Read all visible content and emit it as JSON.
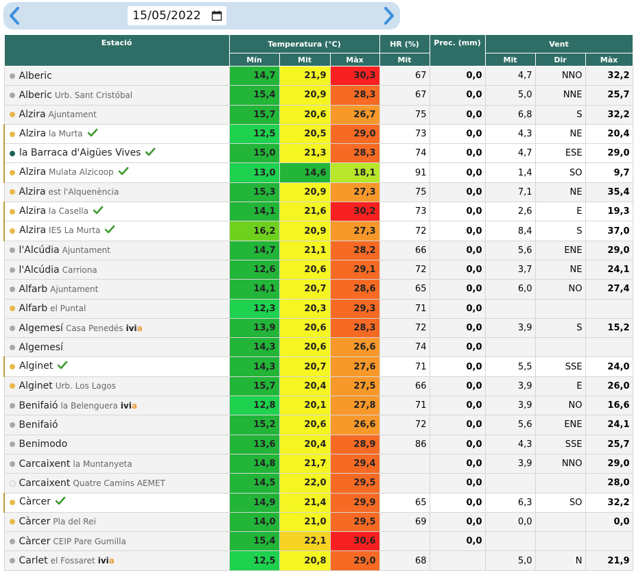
{
  "date_picker": {
    "value": "15/05/2022"
  },
  "header": {
    "station": "Estació",
    "temperature": "Temperatura (°C)",
    "humidity": "HR (%)",
    "precipitation": "Prec. (mm)",
    "wind": "Vent",
    "temp_min": "Mín",
    "temp_mit": "Mit",
    "temp_max": "Màx",
    "hr_mit": "Mit",
    "wind_mit": "Mit",
    "wind_dir": "Dir",
    "wind_max": "Màx"
  },
  "colors": {
    "header_bg": "#2f6e66",
    "date_bar_bg": "#cfe0ef",
    "arrow": "#3d8fe0",
    "check": "#3a9a2a"
  },
  "rows": [
    {
      "name": "Alberic",
      "sub": "",
      "dot": "gray",
      "check": false,
      "ivia": false,
      "flag": false,
      "min": "14,7",
      "min_c": "#22b538",
      "mit": "21,9",
      "mit_c": "#f5f522",
      "max": "30,3",
      "max_c": "#f82020",
      "hr": "67",
      "prec": "0,0",
      "wmit": "4,7",
      "wdir": "NNO",
      "wmax": "32,2"
    },
    {
      "name": "Alberic",
      "sub": "Urb. Sant Cristóbal",
      "dot": "gray",
      "check": false,
      "ivia": false,
      "flag": false,
      "min": "15,4",
      "min_c": "#22b538",
      "mit": "20,9",
      "mit_c": "#f5f522",
      "max": "28,3",
      "max_c": "#f66a24",
      "hr": "67",
      "prec": "0,0",
      "wmit": "5,0",
      "wdir": "NNE",
      "wmax": "25,7"
    },
    {
      "name": "Alzira",
      "sub": "Ajuntament",
      "dot": "yellow",
      "check": false,
      "ivia": false,
      "flag": false,
      "min": "15,7",
      "min_c": "#22b538",
      "mit": "20,6",
      "mit_c": "#f5f522",
      "max": "26,7",
      "max_c": "#f7982a",
      "hr": "75",
      "prec": "0,0",
      "wmit": "6,8",
      "wdir": "S",
      "wmax": "32,2"
    },
    {
      "name": "Alzira",
      "sub": "la Murta",
      "dot": "yellow",
      "check": true,
      "ivia": false,
      "flag": true,
      "min": "12,5",
      "min_c": "#1ed14e",
      "mit": "20,5",
      "mit_c": "#f5f522",
      "max": "29,0",
      "max_c": "#f66a24",
      "hr": "73",
      "prec": "0,0",
      "wmit": "4,3",
      "wdir": "NE",
      "wmax": "20,4"
    },
    {
      "name": "la Barraca d'Aigües Vives",
      "sub": "",
      "dot": "teal",
      "check": true,
      "ivia": false,
      "flag": true,
      "min": "15,0",
      "min_c": "#22b538",
      "mit": "21,3",
      "mit_c": "#f5f522",
      "max": "28,3",
      "max_c": "#f66a24",
      "hr": "74",
      "prec": "0,0",
      "wmit": "4,7",
      "wdir": "ESE",
      "wmax": "29,0"
    },
    {
      "name": "Alzira",
      "sub": "Mulata Alzicoop",
      "dot": "yellow",
      "check": true,
      "ivia": false,
      "flag": true,
      "min": "13,0",
      "min_c": "#1ed14e",
      "mit": "14,6",
      "mit_c": "#22b538",
      "max": "18,1",
      "max_c": "#b8e62a",
      "hr": "91",
      "prec": "0,0",
      "wmit": "1,4",
      "wdir": "SO",
      "wmax": "9,7"
    },
    {
      "name": "Alzira",
      "sub": "est l'Alquenència",
      "dot": "yellow",
      "check": false,
      "ivia": false,
      "flag": false,
      "min": "15,3",
      "min_c": "#22b538",
      "mit": "20,9",
      "mit_c": "#f5f522",
      "max": "27,3",
      "max_c": "#f7982a",
      "hr": "75",
      "prec": "0,0",
      "wmit": "7,1",
      "wdir": "NE",
      "wmax": "35,4"
    },
    {
      "name": "Alzira",
      "sub": "la Casella",
      "dot": "yellow",
      "check": true,
      "ivia": false,
      "flag": true,
      "min": "14,1",
      "min_c": "#22b538",
      "mit": "21,6",
      "mit_c": "#f5f522",
      "max": "30,2",
      "max_c": "#f82020",
      "hr": "73",
      "prec": "0,0",
      "wmit": "2,6",
      "wdir": "E",
      "wmax": "19,3"
    },
    {
      "name": "Alzira",
      "sub": "IES La Murta",
      "dot": "yellow",
      "check": true,
      "ivia": false,
      "flag": true,
      "min": "16,2",
      "min_c": "#6fd11e",
      "mit": "20,9",
      "mit_c": "#f5f522",
      "max": "27,3",
      "max_c": "#f7982a",
      "hr": "72",
      "prec": "0,0",
      "wmit": "8,4",
      "wdir": "S",
      "wmax": "37,0"
    },
    {
      "name": "l'Alcúdia",
      "sub": "Ajuntament",
      "dot": "gray",
      "check": false,
      "ivia": false,
      "flag": false,
      "min": "14,7",
      "min_c": "#22b538",
      "mit": "21,1",
      "mit_c": "#f5f522",
      "max": "28,2",
      "max_c": "#f66a24",
      "hr": "66",
      "prec": "0,0",
      "wmit": "5,6",
      "wdir": "ENE",
      "wmax": "29,0"
    },
    {
      "name": "l'Alcúdia",
      "sub": "Carriona",
      "dot": "gray",
      "check": false,
      "ivia": false,
      "flag": false,
      "min": "12,6",
      "min_c": "#22b538",
      "mit": "20,6",
      "mit_c": "#f5f522",
      "max": "29,1",
      "max_c": "#f66a24",
      "hr": "72",
      "prec": "0,0",
      "wmit": "3,7",
      "wdir": "NE",
      "wmax": "24,1"
    },
    {
      "name": "Alfarb",
      "sub": "Ajuntament",
      "dot": "gray",
      "check": false,
      "ivia": false,
      "flag": false,
      "min": "14,1",
      "min_c": "#22b538",
      "mit": "20,7",
      "mit_c": "#f5f522",
      "max": "28,6",
      "max_c": "#f66a24",
      "hr": "65",
      "prec": "0,0",
      "wmit": "6,0",
      "wdir": "NO",
      "wmax": "27,4"
    },
    {
      "name": "Alfarb",
      "sub": "el Puntal",
      "dot": "yellow",
      "check": false,
      "ivia": false,
      "flag": false,
      "min": "12,3",
      "min_c": "#1ed14e",
      "mit": "20,3",
      "mit_c": "#f5f522",
      "max": "29,3",
      "max_c": "#f66a24",
      "hr": "71",
      "prec": "0,0",
      "wmit": "",
      "wdir": "",
      "wmax": ""
    },
    {
      "name": "Algemesí",
      "sub": "Casa Penedés",
      "dot": "gray",
      "check": false,
      "ivia": true,
      "flag": false,
      "min": "13,9",
      "min_c": "#22b538",
      "mit": "20,6",
      "mit_c": "#f5f522",
      "max": "28,3",
      "max_c": "#f66a24",
      "hr": "72",
      "prec": "0,0",
      "wmit": "3,9",
      "wdir": "S",
      "wmax": "15,2"
    },
    {
      "name": "Algemesí",
      "sub": "",
      "dot": "gray",
      "check": false,
      "ivia": false,
      "flag": false,
      "min": "14,3",
      "min_c": "#22b538",
      "mit": "20,6",
      "mit_c": "#f5f522",
      "max": "26,6",
      "max_c": "#f7982a",
      "hr": "74",
      "prec": "0,0",
      "wmit": "",
      "wdir": "",
      "wmax": ""
    },
    {
      "name": "Alginet",
      "sub": "",
      "dot": "yellow",
      "check": true,
      "ivia": false,
      "flag": true,
      "min": "14,3",
      "min_c": "#22b538",
      "mit": "20,7",
      "mit_c": "#f5f522",
      "max": "27,6",
      "max_c": "#f7982a",
      "hr": "71",
      "prec": "0,0",
      "wmit": "5,5",
      "wdir": "SSE",
      "wmax": "24,0"
    },
    {
      "name": "Alginet",
      "sub": "Urb. Los Lagos",
      "dot": "yellow",
      "check": false,
      "ivia": false,
      "flag": false,
      "min": "15,7",
      "min_c": "#22b538",
      "mit": "20,4",
      "mit_c": "#f5f522",
      "max": "27,5",
      "max_c": "#f7982a",
      "hr": "66",
      "prec": "0,0",
      "wmit": "3,9",
      "wdir": "E",
      "wmax": "26,0"
    },
    {
      "name": "Benifaió",
      "sub": "la Belenguera",
      "dot": "gray",
      "check": false,
      "ivia": true,
      "flag": false,
      "min": "12,8",
      "min_c": "#1ed14e",
      "mit": "20,1",
      "mit_c": "#f5f522",
      "max": "27,8",
      "max_c": "#f7982a",
      "hr": "71",
      "prec": "0,0",
      "wmit": "3,9",
      "wdir": "NO",
      "wmax": "16,6"
    },
    {
      "name": "Benifaió",
      "sub": "",
      "dot": "gray",
      "check": false,
      "ivia": false,
      "flag": false,
      "min": "15,2",
      "min_c": "#22b538",
      "mit": "20,6",
      "mit_c": "#f5f522",
      "max": "26,6",
      "max_c": "#f7982a",
      "hr": "72",
      "prec": "0,0",
      "wmit": "5,6",
      "wdir": "ENE",
      "wmax": "24,1"
    },
    {
      "name": "Benimodo",
      "sub": "",
      "dot": "gray",
      "check": false,
      "ivia": false,
      "flag": false,
      "min": "13,6",
      "min_c": "#22b538",
      "mit": "20,4",
      "mit_c": "#f5f522",
      "max": "28,9",
      "max_c": "#f66a24",
      "hr": "86",
      "prec": "0,0",
      "wmit": "4,3",
      "wdir": "SSE",
      "wmax": "25,7"
    },
    {
      "name": "Carcaixent",
      "sub": "la Muntanyeta",
      "dot": "gray",
      "check": false,
      "ivia": false,
      "flag": false,
      "min": "14,8",
      "min_c": "#22b538",
      "mit": "21,7",
      "mit_c": "#f5f522",
      "max": "29,4",
      "max_c": "#f66a24",
      "hr": "",
      "prec": "0,0",
      "wmit": "3,9",
      "wdir": "NNO",
      "wmax": "29,0"
    },
    {
      "name": "Carcaixent",
      "sub": "Quatre Camins AEMET",
      "dot": "hollow",
      "check": false,
      "ivia": false,
      "flag": false,
      "min": "14,5",
      "min_c": "#22b538",
      "mit": "22,0",
      "mit_c": "#f5f522",
      "max": "29,5",
      "max_c": "#f66a24",
      "hr": "",
      "prec": "0,0",
      "wmit": "",
      "wdir": "",
      "wmax": "28,0"
    },
    {
      "name": "Càrcer",
      "sub": "",
      "dot": "yellow",
      "check": true,
      "ivia": false,
      "flag": true,
      "min": "14,9",
      "min_c": "#22b538",
      "mit": "21,4",
      "mit_c": "#f5f522",
      "max": "29,9",
      "max_c": "#f66a24",
      "hr": "65",
      "prec": "0,0",
      "wmit": "6,3",
      "wdir": "SO",
      "wmax": "32,2"
    },
    {
      "name": "Càrcer",
      "sub": "Pla del Rei",
      "dot": "yellow",
      "check": false,
      "ivia": false,
      "flag": false,
      "min": "14,0",
      "min_c": "#22b538",
      "mit": "21,0",
      "mit_c": "#f5f522",
      "max": "29,5",
      "max_c": "#f66a24",
      "hr": "69",
      "prec": "0,0",
      "wmit": "0,0",
      "wdir": "",
      "wmax": "0,0"
    },
    {
      "name": "Càrcer",
      "sub": "CEIP Pare Gumilla",
      "dot": "gray",
      "check": false,
      "ivia": false,
      "flag": false,
      "min": "15,4",
      "min_c": "#22b538",
      "mit": "22,1",
      "mit_c": "#f5d322",
      "max": "30,6",
      "max_c": "#f82020",
      "hr": "",
      "prec": "0,0",
      "wmit": "",
      "wdir": "",
      "wmax": ""
    },
    {
      "name": "Carlet",
      "sub": "el Fossaret",
      "dot": "gray",
      "check": false,
      "ivia": true,
      "flag": false,
      "min": "12,5",
      "min_c": "#1ed14e",
      "mit": "20,8",
      "mit_c": "#f5f522",
      "max": "29,0",
      "max_c": "#f66a24",
      "hr": "68",
      "prec": "",
      "wmit": "5,0",
      "wdir": "N",
      "wmax": "21,9"
    }
  ]
}
